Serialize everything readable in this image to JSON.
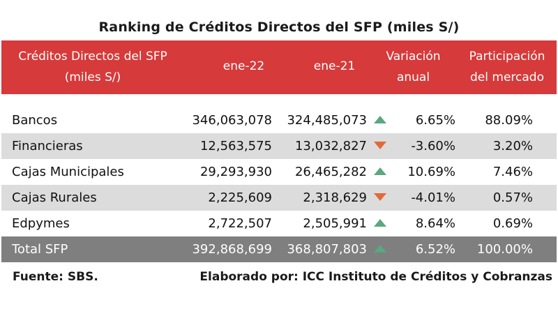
{
  "title": "Ranking de Créditos Directos del SFP (miles S/)",
  "header": {
    "name_line1": "Créditos Directos del SFP",
    "name_line2": "(miles S/)",
    "col1": "ene-22",
    "col2": "ene-21",
    "var_line1": "Variación",
    "var_line2": "anual",
    "part_line1": "Participación",
    "part_line2": "del mercado"
  },
  "colors": {
    "header_bg": "#d63a3a",
    "alt_row_bg": "#dcdcdc",
    "total_row_bg": "#7f7f7f",
    "up_arrow": "#5aa782",
    "down_arrow": "#e06a3a"
  },
  "rows": [
    {
      "name": "Bancos",
      "v1": "346,063,078",
      "v2": "324,485,073",
      "trend": "up",
      "var": "6.65%",
      "part": "88.09%"
    },
    {
      "name": "Financieras",
      "v1": "12,563,575",
      "v2": "13,032,827",
      "trend": "down",
      "var": "-3.60%",
      "part": "3.20%"
    },
    {
      "name": "Cajas Municipales",
      "v1": "29,293,930",
      "v2": "26,465,282",
      "trend": "up",
      "var": "10.69%",
      "part": "7.46%"
    },
    {
      "name": "Cajas Rurales",
      "v1": "2,225,609",
      "v2": "2,318,629",
      "trend": "down",
      "var": "-4.01%",
      "part": "0.57%"
    },
    {
      "name": "Edpymes",
      "v1": "2,722,507",
      "v2": "2,505,991",
      "trend": "up",
      "var": "8.64%",
      "part": "0.69%"
    },
    {
      "name": "Total SFP",
      "v1": "392,868,699",
      "v2": "368,807,803",
      "trend": "up",
      "var": "6.52%",
      "part": "100.00%"
    }
  ],
  "footer": {
    "source": "Fuente: SBS.",
    "author": "Elaborado por: ICC Instituto de Créditos y Cobranzas"
  }
}
